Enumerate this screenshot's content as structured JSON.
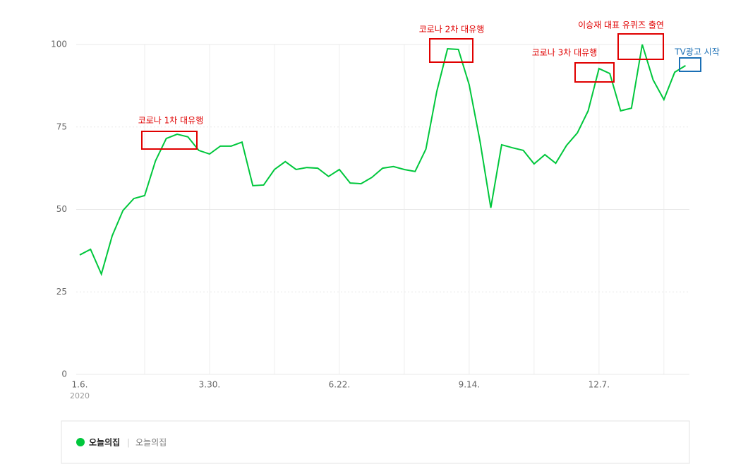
{
  "chart_data": {
    "type": "line",
    "categories": [
      "1.6.",
      null,
      null,
      null,
      null,
      null,
      null,
      null,
      null,
      null,
      null,
      null,
      "3.30.",
      null,
      null,
      null,
      null,
      null,
      null,
      null,
      null,
      null,
      null,
      null,
      "6.22.",
      null,
      null,
      null,
      null,
      null,
      null,
      null,
      null,
      null,
      null,
      null,
      "9.14.",
      null,
      null,
      null,
      null,
      null,
      null,
      null,
      null,
      null,
      null,
      null,
      "12.7.",
      null,
      null,
      null,
      null,
      null,
      null,
      null,
      null
    ],
    "year_label": "2020",
    "series": [
      {
        "name": "오늘의집",
        "color": "#00c73c",
        "values": [
          36.2,
          37.9,
          30.4,
          42,
          49.7,
          53.3,
          54.2,
          64.7,
          71.5,
          72.8,
          72,
          67.9,
          66.8,
          69.2,
          69.2,
          70.4,
          57.2,
          57.4,
          62.1,
          64.5,
          62.1,
          62.7,
          62.5,
          60,
          62.1,
          58,
          57.8,
          59.7,
          62.5,
          63,
          62.1,
          61.5,
          68.3,
          85.7,
          98.7,
          98.5,
          87.8,
          70.7,
          50.5,
          69.6,
          68.7,
          67.9,
          63.8,
          66.6,
          64,
          69.4,
          73.2,
          79.9,
          92.7,
          91.2,
          79.9,
          80.7,
          100,
          89.3,
          83.3,
          91.6,
          93.6
        ]
      }
    ],
    "ylim": [
      0,
      100
    ],
    "yticks": [
      0,
      25,
      50,
      75,
      100
    ],
    "grid": true,
    "annotations": [
      {
        "text": "코로나 1차 대유행",
        "color": "#e00000"
      },
      {
        "text": "코로나 2차 대유행",
        "color": "#e00000"
      },
      {
        "text": "코로나 3차 대유행",
        "color": "#e00000"
      },
      {
        "text": "이승재 대표 유퀴즈 출연",
        "color": "#e00000"
      },
      {
        "text": "TV광고 시작",
        "color": "#1a6fb5"
      }
    ]
  }
}
